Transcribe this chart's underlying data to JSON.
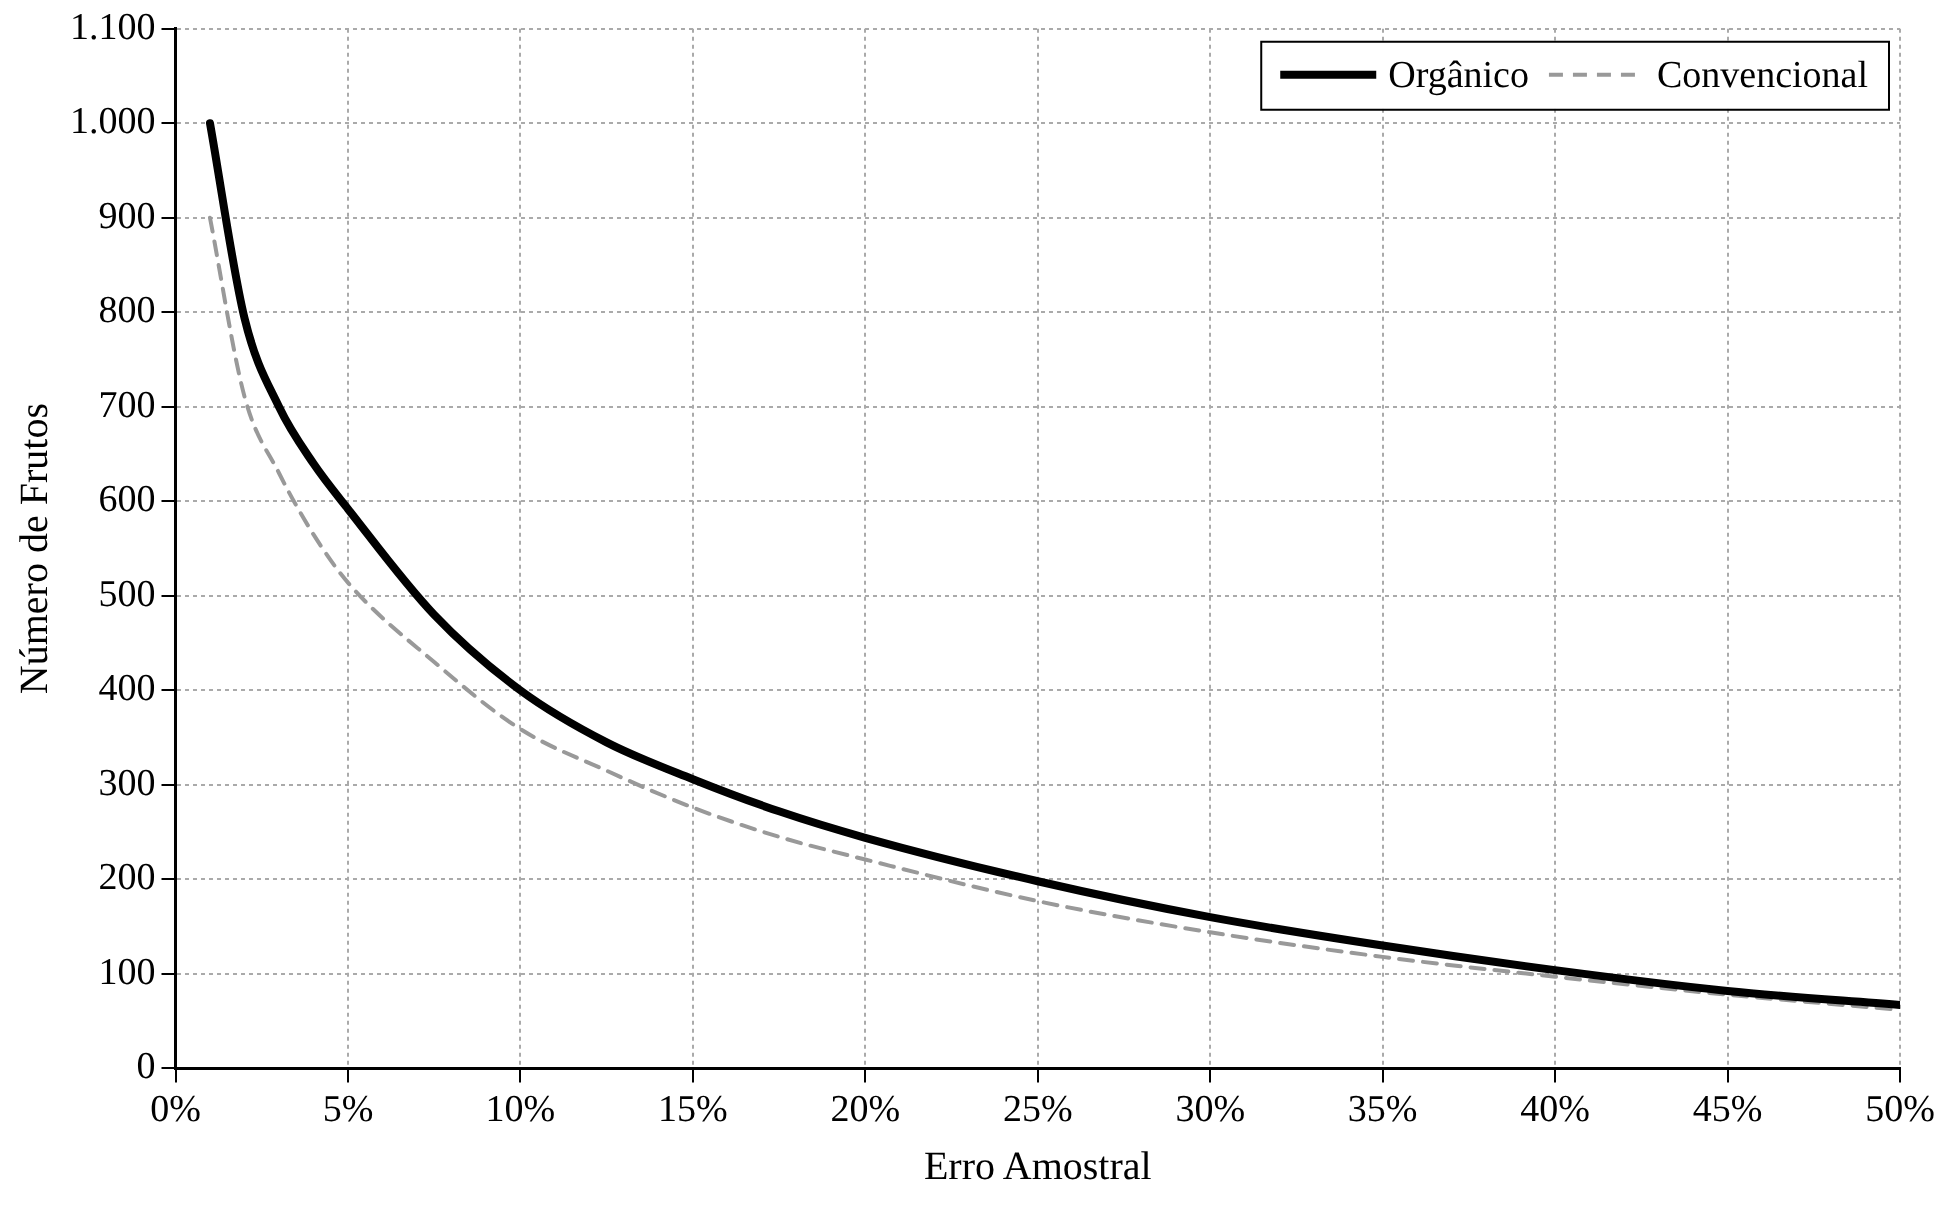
{
  "chart_data": {
    "type": "line",
    "xlabel": "Erro Amostral",
    "ylabel": "Número de Frutos",
    "x": [
      1,
      2,
      3,
      4,
      5,
      7.5,
      10,
      12.5,
      15,
      17.5,
      20,
      25,
      30,
      35,
      40,
      45,
      50
    ],
    "series": [
      {
        "name": "Orgânico",
        "color": "#000000",
        "line_style": "solid",
        "values": [
          1000,
          794,
          700,
          640,
          592,
          480,
          400,
          345,
          306,
          272,
          244,
          198,
          160,
          130,
          104,
          82,
          67
        ]
      },
      {
        "name": "Convencional",
        "color": "#999999",
        "line_style": "dashed",
        "values": [
          900,
          711,
          630,
          565,
          514,
          430,
          359,
          315,
          276,
          245,
          221,
          177,
          144,
          118,
          97,
          78,
          62
        ]
      }
    ],
    "xlim": [
      0,
      50
    ],
    "xticks": [
      {
        "value": 0,
        "label": "0%"
      },
      {
        "value": 5,
        "label": "5%"
      },
      {
        "value": 10,
        "label": "10%"
      },
      {
        "value": 15,
        "label": "15%"
      },
      {
        "value": 20,
        "label": "20%"
      },
      {
        "value": 25,
        "label": "25%"
      },
      {
        "value": 30,
        "label": "30%"
      },
      {
        "value": 35,
        "label": "35%"
      },
      {
        "value": 40,
        "label": "40%"
      },
      {
        "value": 45,
        "label": "45%"
      },
      {
        "value": 50,
        "label": "50%"
      }
    ],
    "ylim": [
      0,
      1100
    ],
    "yticks": [
      0,
      100,
      200,
      300,
      400,
      500,
      600,
      700,
      800,
      900,
      {
        "value": 1000,
        "label": "1.000"
      },
      {
        "value": 1100,
        "label": "1.100"
      }
    ],
    "grid": true,
    "legend": "top right",
    "marker": "none"
  }
}
